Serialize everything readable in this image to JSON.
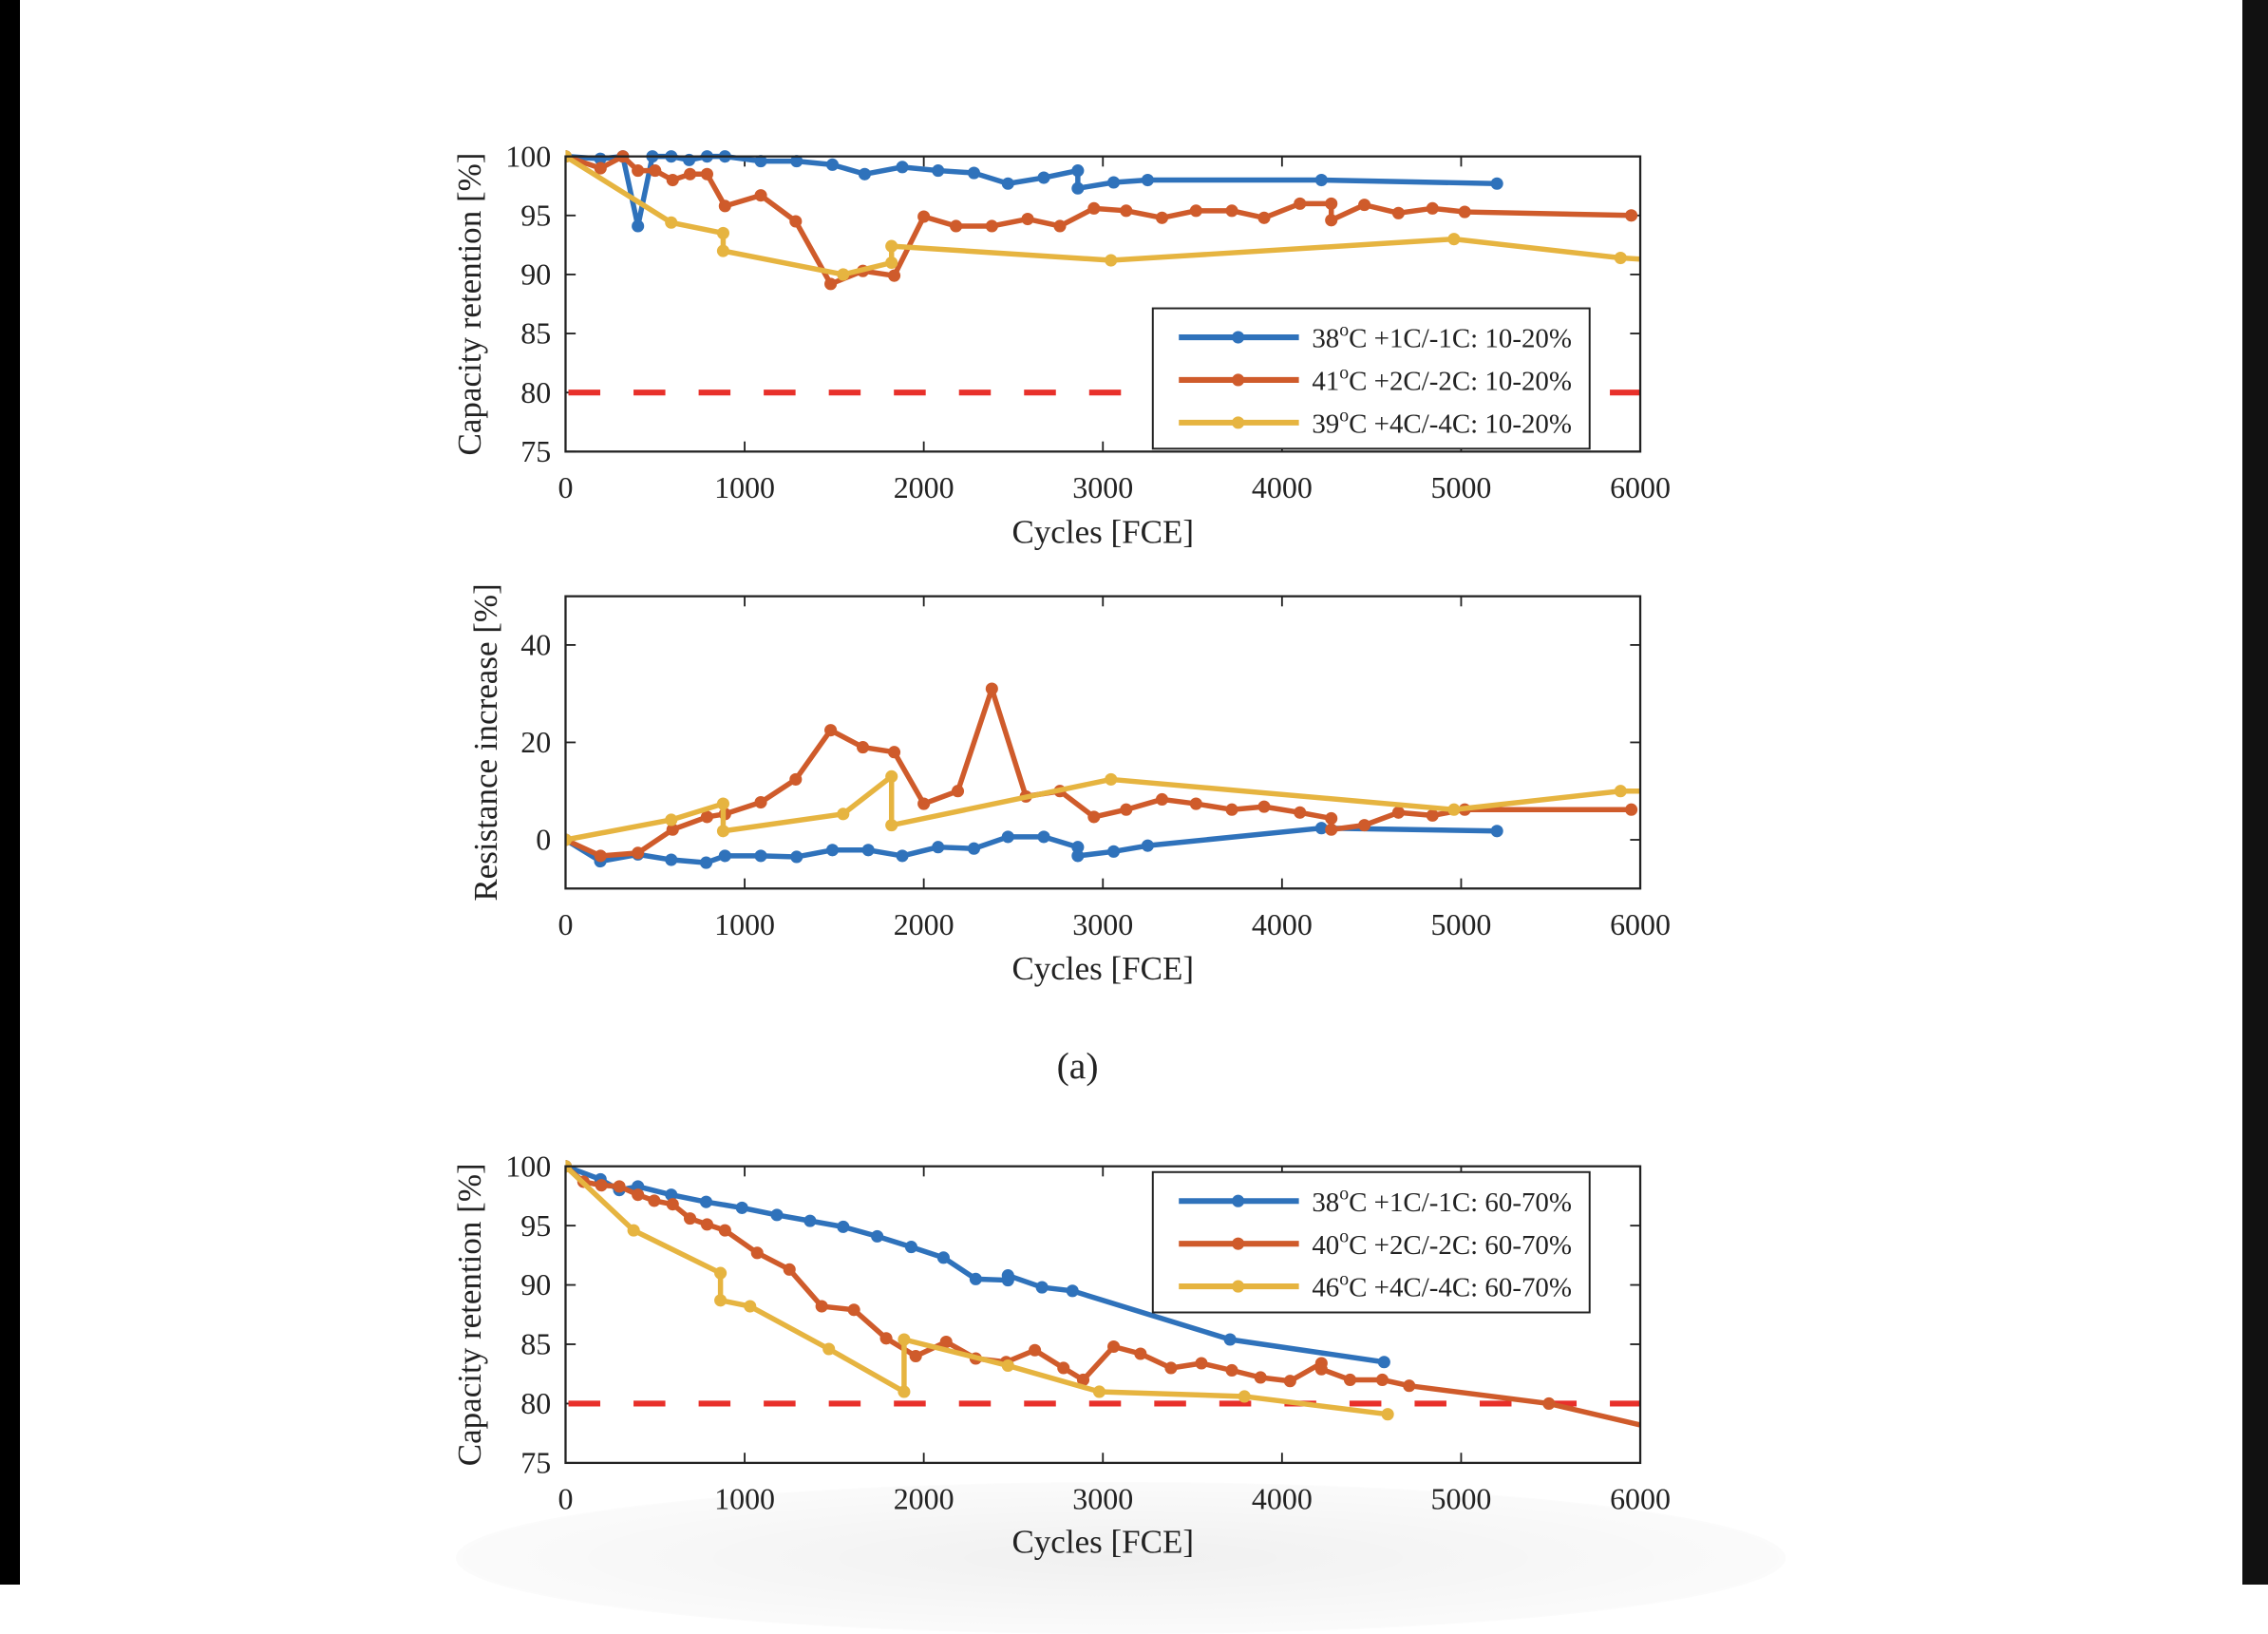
{
  "caption": "(a)",
  "colors": {
    "blue": "#2f72bb",
    "orange": "#cf5b2b",
    "yellow": "#e6b440",
    "threshold": "#e8302a",
    "axis": "#222222"
  },
  "chart_data": [
    {
      "type": "line",
      "xlabel": "Cycles [FCE]",
      "ylabel": "Capacity retention [%]",
      "xlim": [
        0,
        6000
      ],
      "ylim": [
        75,
        100
      ],
      "xticks": [
        0,
        1000,
        2000,
        3000,
        4000,
        5000,
        6000
      ],
      "yticks": [
        75,
        80,
        85,
        90,
        95,
        100
      ],
      "grid": false,
      "legend_position": "lower-right",
      "threshold": {
        "y": 80,
        "style": "dashed",
        "color": "#e8302a"
      },
      "series": [
        {
          "name": "38°C +1C/-1C: 10-20%",
          "color": "#2f72bb",
          "x": [
            0,
            194,
            320,
            404,
            485,
            590,
            690,
            790,
            890,
            1090,
            1290,
            1490,
            1670,
            1880,
            2080,
            2280,
            2470,
            2670,
            2860,
            2860,
            3060,
            3250,
            4220,
            5200
          ],
          "y": [
            100,
            99.8,
            100,
            94.1,
            100,
            100,
            99.7,
            100,
            100,
            99.6,
            99.6,
            99.3,
            98.5,
            99.1,
            98.8,
            98.6,
            97.7,
            98.2,
            98.8,
            97.3,
            97.8,
            98.0,
            98.0,
            97.7
          ]
        },
        {
          "name": "41°C +2C/-2C: 10-20%",
          "color": "#cf5b2b",
          "x": [
            0,
            195,
            320,
            404,
            500,
            598,
            695,
            790,
            890,
            1090,
            1285,
            1480,
            1660,
            1835,
            2000,
            2180,
            2380,
            2580,
            2760,
            2950,
            3130,
            3330,
            3520,
            3720,
            3900,
            4100,
            4275,
            4275,
            4460,
            4650,
            4840,
            5020,
            5950
          ],
          "y": [
            100,
            99,
            100,
            98.8,
            98.8,
            98,
            98.5,
            98.5,
            95.8,
            96.7,
            94.5,
            89.2,
            90.3,
            89.9,
            94.9,
            94.1,
            94.1,
            94.7,
            94.1,
            95.6,
            95.4,
            94.8,
            95.4,
            95.4,
            94.8,
            96,
            96,
            94.6,
            95.9,
            95.2,
            95.6,
            95.3,
            95
          ]
        },
        {
          "name": "39°C +4C/-4C: 10-20%",
          "color": "#e6b440",
          "x": [
            0,
            590,
            880,
            880,
            1550,
            1820,
            1820,
            3045,
            4960,
            5890,
            6000
          ],
          "y": [
            100,
            94.4,
            93.5,
            92.0,
            90,
            91,
            92.4,
            91.2,
            93.0,
            91.4,
            91.3
          ]
        }
      ]
    },
    {
      "type": "line",
      "xlabel": "Cycles [FCE]",
      "ylabel": "Resistance increase [%]",
      "xlim": [
        0,
        6000
      ],
      "ylim": [
        -10,
        50
      ],
      "xticks": [
        0,
        1000,
        2000,
        3000,
        4000,
        5000,
        6000
      ],
      "yticks": [
        0,
        20,
        40
      ],
      "grid": false,
      "series": [
        {
          "color": "#2f72bb",
          "x": [
            0,
            194,
            404,
            590,
            785,
            890,
            1090,
            1290,
            1490,
            1690,
            1880,
            2080,
            2280,
            2470,
            2670,
            2860,
            2860,
            3060,
            3250,
            4220,
            5200
          ],
          "y": [
            0,
            -4.4,
            -3,
            -4.1,
            -4.7,
            -3.3,
            -3.3,
            -3.5,
            -2.1,
            -2.1,
            -3.3,
            -1.5,
            -1.8,
            0.6,
            0.6,
            -1.5,
            -3.3,
            -2.4,
            -1.2,
            2.4,
            1.8
          ]
        },
        {
          "color": "#cf5b2b",
          "x": [
            0,
            195,
            404,
            598,
            790,
            890,
            1090,
            1285,
            1480,
            1660,
            1835,
            2000,
            2190,
            2380,
            2570,
            2760,
            2950,
            3130,
            3330,
            3520,
            3720,
            3900,
            4100,
            4275,
            4275,
            4460,
            4650,
            4840,
            5020,
            5950
          ],
          "y": [
            0,
            -3.3,
            -2.7,
            2.1,
            4.7,
            5.3,
            7.7,
            12.4,
            22.5,
            19,
            18,
            7.4,
            10,
            31,
            8.9,
            10,
            4.7,
            6.2,
            8.3,
            7.4,
            6.2,
            6.8,
            5.6,
            4.4,
            2.1,
            3,
            5.6,
            5,
            6.2,
            6.2
          ]
        },
        {
          "color": "#e6b440",
          "x": [
            0,
            590,
            880,
            880,
            1550,
            1820,
            1820,
            3045,
            4960,
            5890,
            6000
          ],
          "y": [
            0,
            4.1,
            7.4,
            1.8,
            5.3,
            13,
            3,
            12.4,
            6.2,
            10,
            10
          ]
        }
      ]
    },
    {
      "type": "line",
      "xlabel": "Cycles [FCE]",
      "ylabel": "Capacity retention [%]",
      "xlim": [
        0,
        6000
      ],
      "ylim": [
        75,
        100
      ],
      "xticks": [
        0,
        1000,
        2000,
        3000,
        4000,
        5000,
        6000
      ],
      "yticks": [
        75,
        80,
        85,
        90,
        95,
        100
      ],
      "grid": false,
      "legend_position": "upper-right",
      "threshold": {
        "y": 80,
        "style": "dashed",
        "color": "#e8302a"
      },
      "series": [
        {
          "name": "38°C +1C/-1C: 60-70%",
          "color": "#2f72bb",
          "x": [
            0,
            195,
            300,
            404,
            590,
            785,
            985,
            1180,
            1365,
            1550,
            1740,
            1930,
            2110,
            2290,
            2470,
            2470,
            2660,
            2830,
            3710,
            4570
          ],
          "y": [
            100,
            98.9,
            98.0,
            98.3,
            97.6,
            97,
            96.5,
            95.9,
            95.4,
            94.9,
            94.1,
            93.2,
            92.3,
            90.5,
            90.4,
            90.8,
            89.8,
            89.5,
            85.4,
            83.5
          ]
        },
        {
          "name": "40°C +2C/-2C: 60-70%",
          "color": "#cf5b2b",
          "x": [
            0,
            100,
            200,
            300,
            404,
            495,
            598,
            695,
            790,
            890,
            1070,
            1250,
            1430,
            1610,
            1790,
            1955,
            2125,
            2290,
            2460,
            2620,
            2780,
            2890,
            3060,
            3210,
            3380,
            3550,
            3720,
            3880,
            4045,
            4220,
            4220,
            4380,
            4560,
            4710,
            5490,
            6000
          ],
          "y": [
            100,
            98.7,
            98.4,
            98.3,
            97.6,
            97.1,
            96.8,
            95.6,
            95.1,
            94.6,
            92.7,
            91.3,
            88.2,
            87.9,
            85.5,
            84,
            85.2,
            83.8,
            83.5,
            84.5,
            83,
            82,
            84.8,
            84.2,
            83,
            83.4,
            82.8,
            82.2,
            81.9,
            83.4,
            82.9,
            82,
            82,
            81.5,
            80,
            78.2
          ]
        },
        {
          "name": "46°C +4C/-4C: 60-70%",
          "color": "#e6b440",
          "x": [
            0,
            380,
            865,
            865,
            1030,
            1470,
            1890,
            1890,
            2470,
            2980,
            3790,
            4590
          ],
          "y": [
            100,
            94.6,
            91,
            88.7,
            88.2,
            84.6,
            81,
            85.4,
            83.2,
            81,
            80.6,
            79.1
          ]
        }
      ]
    }
  ]
}
